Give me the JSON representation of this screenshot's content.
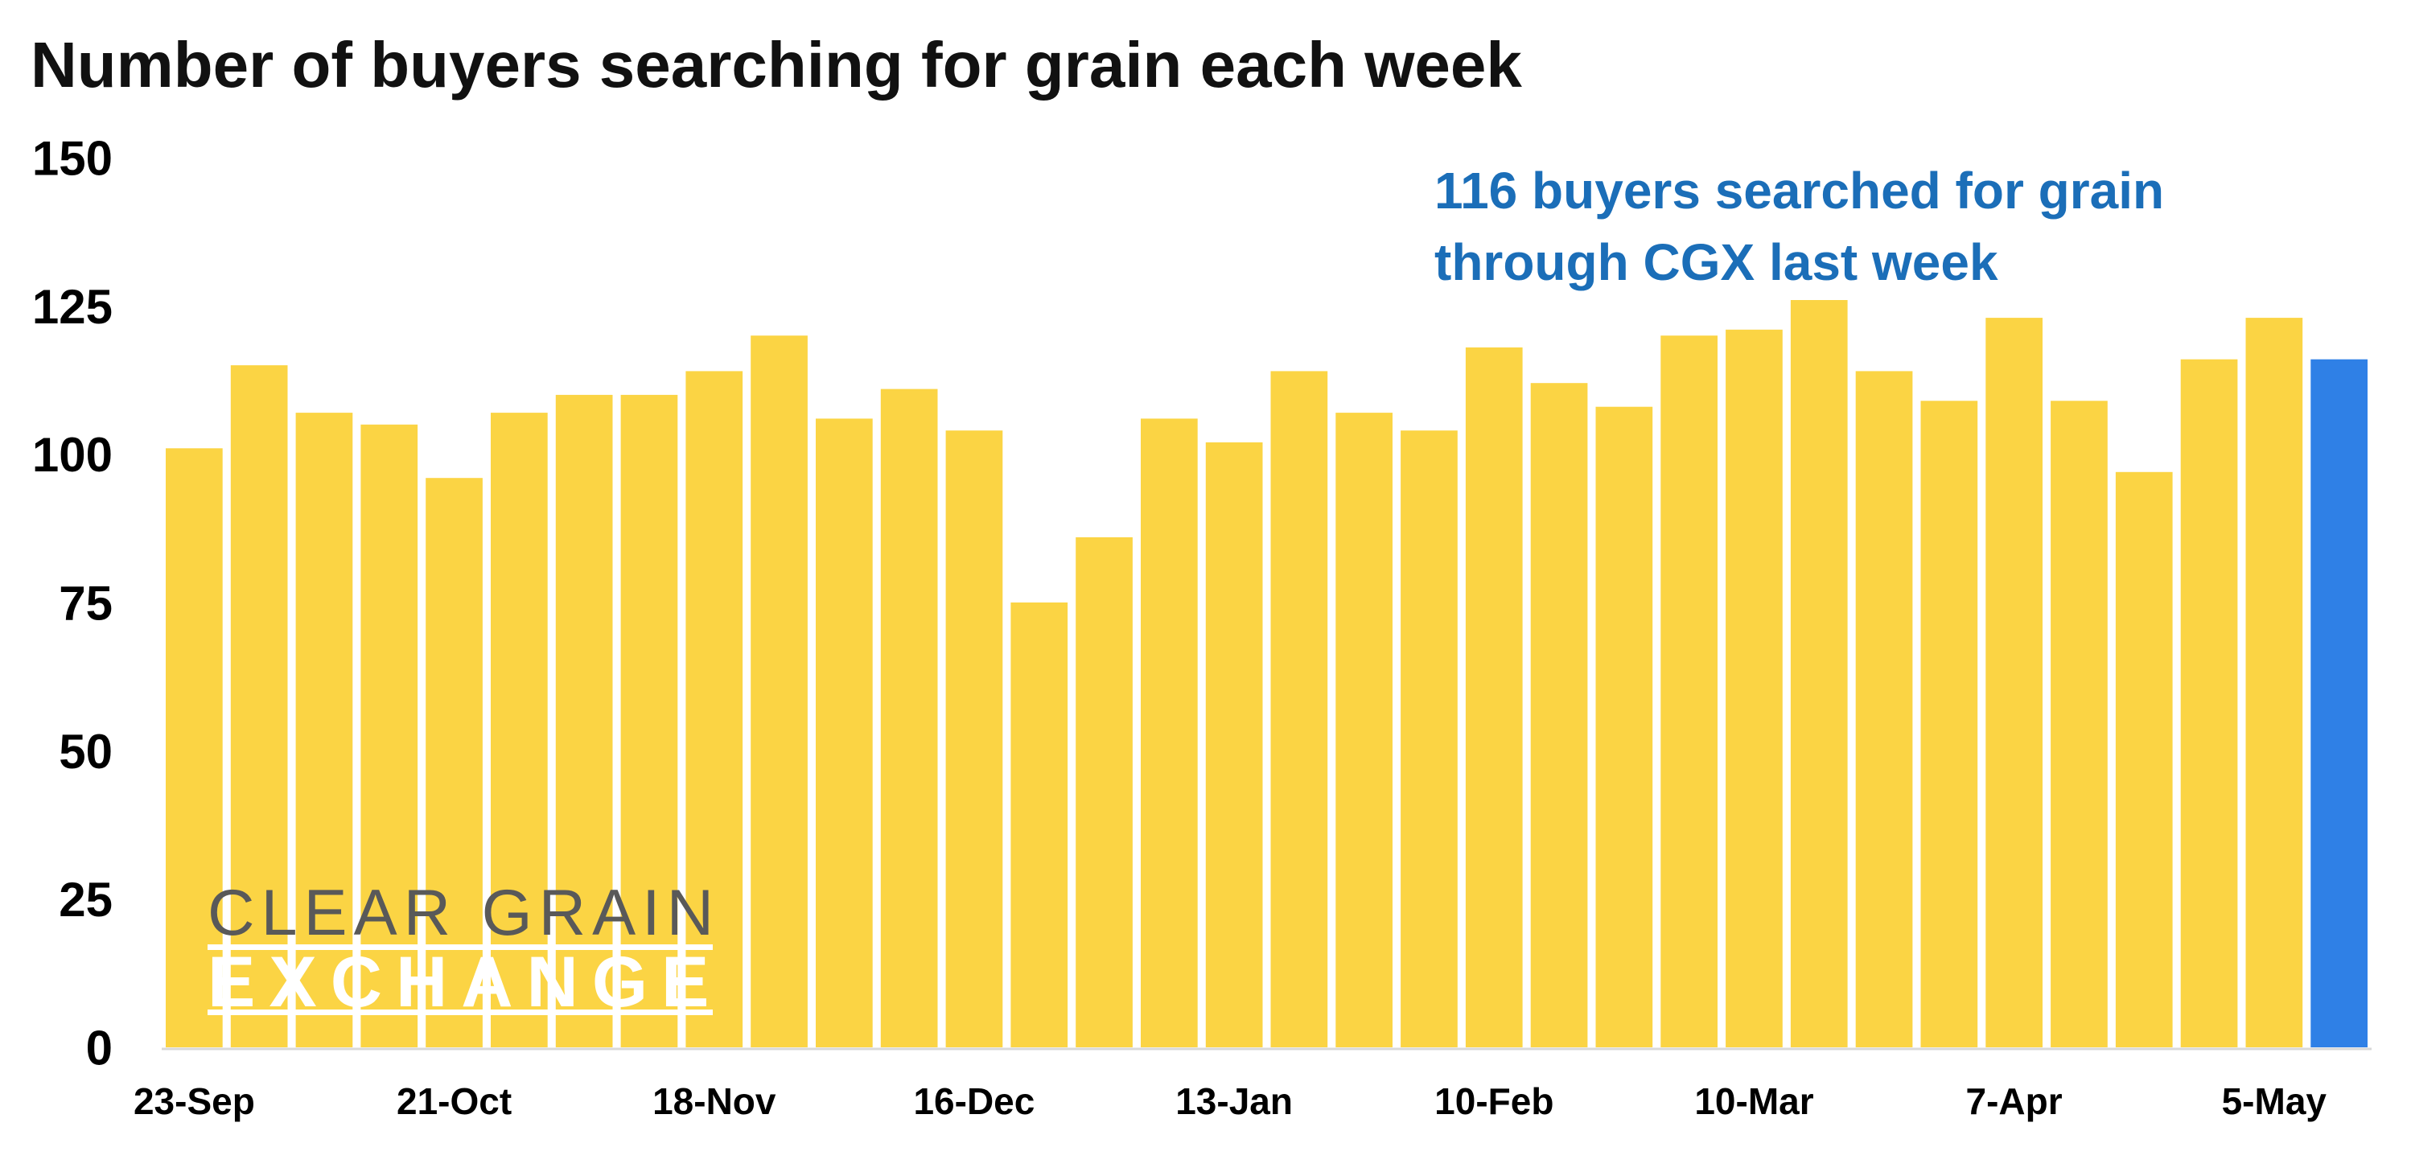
{
  "chart_data": {
    "type": "bar",
    "title": "Number of buyers searching for grain each week",
    "categories": [
      "23-Sep",
      "",
      "",
      "",
      "21-Oct",
      "",
      "",
      "",
      "18-Nov",
      "",
      "",
      "",
      "16-Dec",
      "",
      "",
      "",
      "13-Jan",
      "",
      "",
      "",
      "10-Feb",
      "",
      "",
      "",
      "10-Mar",
      "",
      "",
      "",
      "7-Apr",
      "",
      "",
      "",
      "5-May",
      ""
    ],
    "values": [
      101,
      115,
      107,
      105,
      96,
      107,
      110,
      110,
      114,
      120,
      106,
      111,
      104,
      75,
      86,
      106,
      102,
      114,
      107,
      104,
      118,
      112,
      108,
      120,
      121,
      126,
      114,
      109,
      123,
      109,
      97,
      116,
      123,
      116
    ],
    "y_ticks": [
      0,
      25,
      50,
      75,
      100,
      125,
      150
    ],
    "ylim": [
      0,
      150
    ],
    "grid": false,
    "legend": "none",
    "annotation": [
      "116 buyers searched for grain",
      "through CGX last week"
    ],
    "colors": {
      "bars": "#FBD444",
      "last_bar": "#2F80E6",
      "annotation": "#1B6EB8"
    }
  },
  "logo": {
    "line1": "CLEAR GRAIN",
    "line2": "EXCHANGE"
  }
}
